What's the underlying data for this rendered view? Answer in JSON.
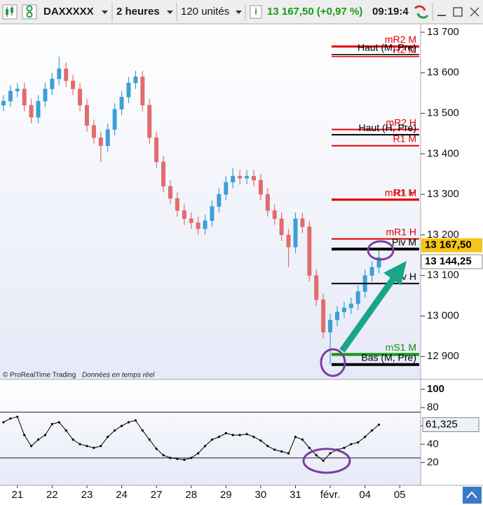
{
  "toolbar": {
    "symbol": "DAXXXXX",
    "period": "2 heures",
    "units": "120 unités",
    "quote": "13 167,50 (+0,97 %)",
    "time": "09:19:4"
  },
  "chart_data": [
    {
      "type": "candlestick",
      "source": "© ProRealTime Trading",
      "note": "Données en temps réel",
      "up_color": "#3d9ed6",
      "down_color": "#e06c6c",
      "x": [
        0.1,
        0.3,
        0.5,
        0.7,
        0.9,
        1.1,
        1.3,
        1.5,
        1.7,
        1.9,
        2.1,
        2.3,
        2.5,
        2.7,
        2.9,
        3.1,
        3.3,
        3.5,
        3.7,
        3.9,
        4.1,
        4.3,
        4.5,
        4.7,
        4.9,
        5.1,
        5.3,
        5.5,
        5.7,
        5.9,
        6.1,
        6.3,
        6.5,
        6.7,
        6.9,
        7.1,
        7.3,
        7.5,
        7.7,
        7.9,
        8.1,
        8.3,
        8.5,
        8.7,
        8.9,
        9.1,
        9.3,
        9.5,
        9.7,
        9.9,
        10.1,
        10.3,
        10.5,
        10.7,
        10.9
      ],
      "open": [
        13520,
        13530,
        13555,
        13560,
        13520,
        13490,
        13530,
        13560,
        13585,
        13610,
        13580,
        13560,
        13520,
        13470,
        13440,
        13420,
        13460,
        13510,
        13540,
        13575,
        13590,
        13520,
        13440,
        13380,
        13320,
        13290,
        13260,
        13240,
        13230,
        13215,
        13235,
        13270,
        13300,
        13330,
        13345,
        13340,
        13345,
        13335,
        13300,
        13260,
        13240,
        13200,
        13170,
        13240,
        13220,
        13100,
        13040,
        12960,
        12990,
        13010,
        13020,
        13030,
        13060,
        13100,
        13120
      ],
      "high": [
        13545,
        13570,
        13575,
        13575,
        13535,
        13545,
        13575,
        13600,
        13640,
        13625,
        13595,
        13575,
        13535,
        13485,
        13455,
        13475,
        13525,
        13555,
        13590,
        13605,
        13605,
        13535,
        13455,
        13395,
        13335,
        13305,
        13275,
        13255,
        13245,
        13250,
        13285,
        13315,
        13345,
        13365,
        13360,
        13360,
        13360,
        13350,
        13315,
        13275,
        13255,
        13215,
        13255,
        13255,
        13235,
        13115,
        13055,
        13005,
        13025,
        13035,
        13045,
        13075,
        13115,
        13135,
        13167.5
      ],
      "low": [
        13505,
        13515,
        13540,
        13505,
        13475,
        13475,
        13515,
        13545,
        13570,
        13565,
        13545,
        13505,
        13455,
        13425,
        13380,
        13405,
        13445,
        13495,
        13525,
        13560,
        13505,
        13425,
        13365,
        13305,
        13275,
        13245,
        13225,
        13215,
        13200,
        13200,
        13220,
        13255,
        13285,
        13315,
        13325,
        13325,
        13320,
        13285,
        13245,
        13225,
        13185,
        13120,
        13155,
        13205,
        13085,
        13025,
        12945,
        12880,
        12975,
        12995,
        13005,
        13015,
        13045,
        13085,
        13105
      ],
      "close": [
        13530,
        13555,
        13560,
        13520,
        13490,
        13530,
        13560,
        13585,
        13610,
        13580,
        13560,
        13520,
        13470,
        13440,
        13420,
        13460,
        13510,
        13540,
        13575,
        13590,
        13520,
        13440,
        13380,
        13320,
        13290,
        13260,
        13240,
        13230,
        13215,
        13235,
        13270,
        13300,
        13330,
        13345,
        13340,
        13345,
        13335,
        13300,
        13260,
        13240,
        13200,
        13170,
        13240,
        13220,
        13100,
        13040,
        12960,
        12990,
        13010,
        13020,
        13030,
        13060,
        13100,
        13120,
        13144.25
      ],
      "xlim": [
        0,
        12.1
      ],
      "xticks": [
        {
          "value": 0.5,
          "label": "21"
        },
        {
          "value": 1.5,
          "label": "22"
        },
        {
          "value": 2.5,
          "label": "23"
        },
        {
          "value": 3.5,
          "label": "24"
        },
        {
          "value": 4.5,
          "label": "27"
        },
        {
          "value": 5.5,
          "label": "28"
        },
        {
          "value": 6.5,
          "label": "29"
        },
        {
          "value": 7.5,
          "label": "30"
        },
        {
          "value": 8.5,
          "label": "31"
        },
        {
          "value": 9.5,
          "label": "févr."
        },
        {
          "value": 10.5,
          "label": "04"
        },
        {
          "value": 11.5,
          "label": "05"
        }
      ],
      "ylim": [
        12845,
        13719
      ],
      "yticks": [
        {
          "value": 12900,
          "label": "12 900"
        },
        {
          "value": 13000,
          "label": "13 000"
        },
        {
          "value": 13100,
          "label": "13 100"
        },
        {
          "value": 13200,
          "label": "13 200"
        },
        {
          "value": 13300,
          "label": "13 300"
        },
        {
          "value": 13400,
          "label": "13 400"
        },
        {
          "value": 13500,
          "label": "13 500"
        },
        {
          "value": 13600,
          "label": "13 600"
        },
        {
          "value": 13700,
          "label": "13 700"
        }
      ],
      "levels": [
        {
          "name": "mR2 M",
          "value": 13665,
          "color": "#e00000",
          "width": 3
        },
        {
          "name": "R2 M",
          "value": 13640,
          "color": "#e00000",
          "width": 1.5
        },
        {
          "name": "Haut (M, Pre)",
          "value": 13645,
          "color": "#000000",
          "width": 1.5
        },
        {
          "name": "mR2 H",
          "value": 13460,
          "color": "#e00000",
          "width": 2
        },
        {
          "name": "Haut (H, Pre)",
          "value": 13447,
          "color": "#000000",
          "width": 2
        },
        {
          "name": "R1 M",
          "value": 13420,
          "color": "#e00000",
          "width": 2
        },
        {
          "name": "mR1 M",
          "value": 13287,
          "color": "#e00000",
          "width": 3
        },
        {
          "name": "R1 H",
          "value": 13287,
          "color": "#e00000",
          "width": 3
        },
        {
          "name": "mR1 H",
          "value": 13190,
          "color": "#e00000",
          "width": 2
        },
        {
          "name": "Piv M",
          "value": 13165,
          "color": "#000000",
          "width": 4
        },
        {
          "name": "Piv H",
          "value": 13080,
          "color": "#000000",
          "width": 2
        },
        {
          "name": "mS1 M",
          "value": 12905,
          "color": "#1a9a1a",
          "width": 4
        },
        {
          "name": "S1 M",
          "value": 12905,
          "color": "#1a9a1a",
          "width": 4
        },
        {
          "name": "Bas (M, Pre)",
          "value": 12880,
          "color": "#000000",
          "width": 4
        }
      ],
      "quote": {
        "value": 13167.5,
        "label": "13 167,50"
      },
      "last_price": {
        "value": 13144.25,
        "label": "13 144,25"
      }
    },
    {
      "type": "line",
      "color": "#000000",
      "x": [
        0.1,
        0.3,
        0.5,
        0.7,
        0.9,
        1.1,
        1.3,
        1.5,
        1.7,
        1.9,
        2.1,
        2.3,
        2.5,
        2.7,
        2.9,
        3.1,
        3.3,
        3.5,
        3.7,
        3.9,
        4.1,
        4.3,
        4.5,
        4.7,
        4.9,
        5.1,
        5.3,
        5.5,
        5.7,
        5.9,
        6.1,
        6.3,
        6.5,
        6.7,
        6.9,
        7.1,
        7.3,
        7.5,
        7.7,
        7.9,
        8.1,
        8.3,
        8.5,
        8.7,
        8.9,
        9.1,
        9.3,
        9.5,
        9.7,
        9.9,
        10.1,
        10.3,
        10.5,
        10.7,
        10.9
      ],
      "values": [
        64,
        68,
        70,
        50,
        38,
        45,
        50,
        62,
        64,
        55,
        45,
        40,
        38,
        36,
        38,
        48,
        55,
        60,
        64,
        66,
        55,
        45,
        35,
        28,
        25,
        24,
        23,
        25,
        30,
        38,
        45,
        48,
        52,
        50,
        50,
        51,
        48,
        44,
        38,
        34,
        32,
        30,
        48,
        45,
        36,
        28,
        22,
        30,
        34,
        36,
        40,
        42,
        48,
        55,
        61.325
      ],
      "last_label": {
        "value": 61.325,
        "label": "61,325"
      },
      "xlim": [
        0,
        12.1
      ],
      "ylim": [
        -5,
        110
      ],
      "yticks": [
        20,
        40,
        60,
        80,
        100
      ],
      "levels": [
        75,
        25
      ]
    }
  ]
}
